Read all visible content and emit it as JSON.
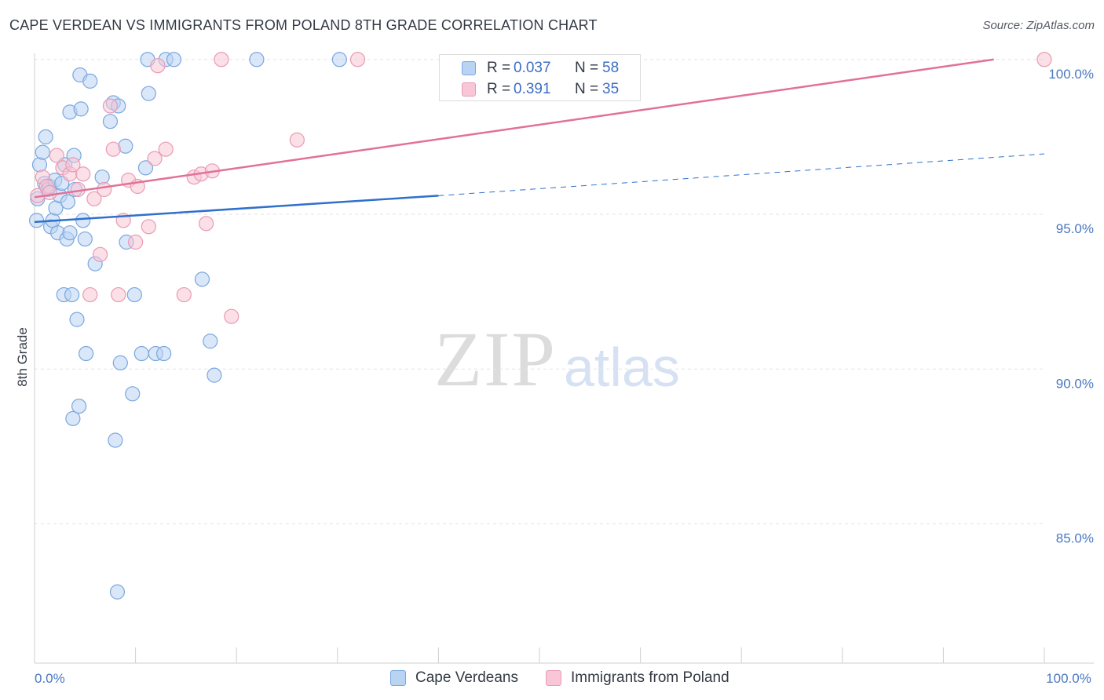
{
  "header": {
    "title": "CAPE VERDEAN VS IMMIGRANTS FROM POLAND 8TH GRADE CORRELATION CHART",
    "source": "Source: ZipAtlas.com"
  },
  "watermark": {
    "zip": "ZIP",
    "atlas": "atlas"
  },
  "legend": {
    "blue": {
      "r_label": "R =",
      "r_value": "0.037",
      "n_label": "N =",
      "n_value": "58"
    },
    "pink": {
      "r_label": "R =",
      "r_value": "0.391",
      "n_label": "N =",
      "n_value": "35"
    }
  },
  "bottom_legend": {
    "blue_label": "Cape Verdeans",
    "pink_label": "Immigrants from Poland"
  },
  "colors": {
    "blue_fill": "#b9d3f2",
    "blue_stroke": "#7aa7df",
    "blue_line": "#2f70cc",
    "pink_fill": "#f8c6d6",
    "pink_stroke": "#e99ab4",
    "pink_line": "#e2709a",
    "tick_text": "#4a78c2",
    "grid": "#e3e3e3"
  },
  "chart_data": {
    "type": "scatter",
    "title": "CAPE VERDEAN VS IMMIGRANTS FROM POLAND 8TH GRADE CORRELATION CHART",
    "xlabel": "",
    "ylabel": "8th Grade",
    "xlim": [
      0,
      100
    ],
    "ylim": [
      80.5,
      100.4
    ],
    "x_ticks": [
      0,
      10,
      20,
      30,
      40,
      50,
      60,
      70,
      80,
      90,
      100
    ],
    "x_tick_labels": [
      {
        "value": 0,
        "label": "0.0%"
      },
      {
        "value": 100,
        "label": "100.0%"
      }
    ],
    "y_ticks": [
      {
        "value": 100,
        "label": "100.0%"
      },
      {
        "value": 95,
        "label": "95.0%"
      },
      {
        "value": 90,
        "label": "90.0%"
      },
      {
        "value": 85,
        "label": "85.0%"
      }
    ],
    "grid": true,
    "legend_position": "top-center",
    "series": [
      {
        "name": "Cape Verdeans",
        "color": "#7aa7df",
        "r": 0.037,
        "n": 58,
        "trend": {
          "x_start": 0,
          "y_start": 94.75,
          "x_solid_end": 40,
          "y_solid_end": 95.6,
          "x_end": 100,
          "y_end": 96.95
        },
        "points": [
          [
            0.2,
            94.8
          ],
          [
            0.3,
            95.5
          ],
          [
            0.5,
            96.6
          ],
          [
            0.8,
            97.0
          ],
          [
            1.0,
            96.0
          ],
          [
            1.1,
            97.5
          ],
          [
            1.3,
            95.8
          ],
          [
            1.5,
            95.9
          ],
          [
            1.6,
            94.6
          ],
          [
            1.8,
            94.8
          ],
          [
            2.0,
            96.1
          ],
          [
            2.1,
            95.2
          ],
          [
            2.3,
            94.4
          ],
          [
            2.5,
            95.6
          ],
          [
            2.7,
            96.0
          ],
          [
            2.9,
            92.4
          ],
          [
            3.0,
            96.6
          ],
          [
            3.2,
            94.2
          ],
          [
            3.3,
            95.4
          ],
          [
            3.5,
            98.3
          ],
          [
            3.5,
            94.4
          ],
          [
            3.7,
            92.4
          ],
          [
            3.8,
            88.4
          ],
          [
            3.9,
            96.9
          ],
          [
            4.0,
            95.8
          ],
          [
            4.2,
            91.6
          ],
          [
            4.4,
            88.8
          ],
          [
            4.5,
            99.5
          ],
          [
            4.6,
            98.4
          ],
          [
            4.8,
            94.8
          ],
          [
            5.0,
            94.2
          ],
          [
            5.1,
            90.5
          ],
          [
            5.5,
            99.3
          ],
          [
            6.0,
            93.4
          ],
          [
            6.7,
            96.2
          ],
          [
            7.5,
            98.0
          ],
          [
            7.8,
            98.6
          ],
          [
            8.0,
            87.7
          ],
          [
            8.2,
            82.8
          ],
          [
            8.3,
            98.5
          ],
          [
            8.5,
            90.2
          ],
          [
            9.0,
            97.2
          ],
          [
            9.1,
            94.1
          ],
          [
            9.7,
            89.2
          ],
          [
            9.9,
            92.4
          ],
          [
            10.6,
            90.5
          ],
          [
            11.0,
            96.5
          ],
          [
            11.2,
            100.0
          ],
          [
            11.3,
            98.9
          ],
          [
            12.0,
            90.5
          ],
          [
            12.8,
            90.5
          ],
          [
            13.0,
            100.0
          ],
          [
            13.8,
            100.0
          ],
          [
            16.6,
            92.9
          ],
          [
            17.4,
            90.9
          ],
          [
            17.8,
            89.8
          ],
          [
            22.0,
            100.0
          ],
          [
            30.2,
            100.0
          ]
        ]
      },
      {
        "name": "Immigrants from Poland",
        "color": "#e99ab4",
        "r": 0.391,
        "n": 35,
        "trend": {
          "x_start": 0,
          "y_start": 95.55,
          "x_end": 95.0,
          "y_end": 100.0
        },
        "points": [
          [
            0.3,
            95.6
          ],
          [
            0.8,
            96.2
          ],
          [
            1.2,
            95.9
          ],
          [
            1.5,
            95.7
          ],
          [
            2.2,
            96.9
          ],
          [
            2.8,
            96.5
          ],
          [
            3.5,
            96.3
          ],
          [
            3.8,
            96.6
          ],
          [
            4.3,
            95.8
          ],
          [
            4.8,
            96.3
          ],
          [
            5.5,
            92.4
          ],
          [
            5.9,
            95.5
          ],
          [
            6.5,
            93.7
          ],
          [
            6.9,
            95.8
          ],
          [
            7.5,
            98.5
          ],
          [
            7.8,
            97.1
          ],
          [
            8.3,
            92.4
          ],
          [
            8.8,
            94.8
          ],
          [
            9.3,
            96.1
          ],
          [
            10.0,
            94.1
          ],
          [
            10.2,
            95.9
          ],
          [
            11.3,
            94.6
          ],
          [
            11.9,
            96.8
          ],
          [
            12.2,
            99.8
          ],
          [
            13.0,
            97.1
          ],
          [
            14.8,
            92.4
          ],
          [
            15.8,
            96.2
          ],
          [
            16.5,
            96.3
          ],
          [
            17.0,
            94.7
          ],
          [
            17.6,
            96.4
          ],
          [
            18.5,
            100.0
          ],
          [
            19.5,
            91.7
          ],
          [
            26.0,
            97.4
          ],
          [
            32.0,
            100.0
          ],
          [
            100.0,
            100.0
          ]
        ]
      }
    ]
  }
}
